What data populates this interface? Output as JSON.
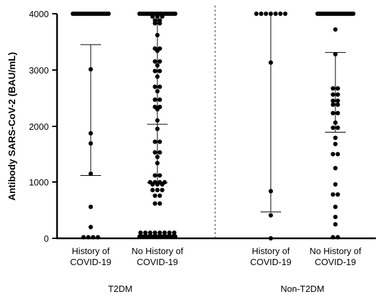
{
  "chart_data": {
    "type": "scatter",
    "ylabel": "Antibody SARS-CoV-2 (BAU/mL)",
    "ylim": [
      0,
      4000
    ],
    "yticks": [
      0,
      1000,
      2000,
      3000,
      4000
    ],
    "grid": false,
    "categories": [
      {
        "label_line1": "History of",
        "label_line2": "COVID-19",
        "group": "T2DM"
      },
      {
        "label_line1": "No History of",
        "label_line2": "COVID-19",
        "group": "T2DM"
      },
      {
        "label_line1": "History of",
        "label_line2": "COVID-19",
        "group": "Non-T2DM"
      },
      {
        "label_line1": "No History of",
        "label_line2": "COVID-19",
        "group": "Non-T2DM"
      }
    ],
    "groups": [
      {
        "label": "T2DM",
        "categories": [
          0,
          1
        ]
      },
      {
        "label": "Non-T2DM",
        "categories": [
          2,
          3
        ]
      }
    ],
    "series": [
      {
        "summary": {
          "center": 4000,
          "upper": 3450,
          "lower": 1120
        },
        "points": [
          {
            "y": 4000,
            "n": 18
          },
          {
            "y": 3010,
            "n": 1
          },
          {
            "y": 1870,
            "n": 1
          },
          {
            "y": 1690,
            "n": 1
          },
          {
            "y": 1150,
            "n": 1
          },
          {
            "y": 560,
            "n": 1
          },
          {
            "y": 200,
            "n": 1
          },
          {
            "y": 20,
            "n": 4
          }
        ]
      },
      {
        "summary": {
          "center": 4000,
          "upper": 4000,
          "lower": 990,
          "mid": 2030
        },
        "points": [
          {
            "y": 4000,
            "n": 18
          },
          {
            "y": 3950,
            "n": 3
          },
          {
            "y": 3880,
            "n": 2
          },
          {
            "y": 3830,
            "n": 2
          },
          {
            "y": 3620,
            "n": 1
          },
          {
            "y": 3380,
            "n": 2
          },
          {
            "y": 3340,
            "n": 1
          },
          {
            "y": 3150,
            "n": 2
          },
          {
            "y": 3080,
            "n": 1
          },
          {
            "y": 2980,
            "n": 2
          },
          {
            "y": 2880,
            "n": 1
          },
          {
            "y": 2700,
            "n": 2
          },
          {
            "y": 2620,
            "n": 1
          },
          {
            "y": 2470,
            "n": 2
          },
          {
            "y": 2340,
            "n": 2
          },
          {
            "y": 2300,
            "n": 1
          },
          {
            "y": 2100,
            "n": 1
          },
          {
            "y": 1950,
            "n": 1
          },
          {
            "y": 1720,
            "n": 2
          },
          {
            "y": 1530,
            "n": 2
          },
          {
            "y": 1450,
            "n": 1
          },
          {
            "y": 1340,
            "n": 1
          },
          {
            "y": 1120,
            "n": 2
          },
          {
            "y": 1000,
            "n": 4
          },
          {
            "y": 960,
            "n": 3
          },
          {
            "y": 860,
            "n": 3
          },
          {
            "y": 760,
            "n": 2
          },
          {
            "y": 620,
            "n": 2
          },
          {
            "y": 100,
            "n": 8
          },
          {
            "y": 30,
            "n": 16
          }
        ]
      },
      {
        "summary": {
          "center": 4000,
          "upper": 4000,
          "lower": 470
        },
        "points": [
          {
            "y": 4000,
            "n": 7
          },
          {
            "y": 3130,
            "n": 1
          },
          {
            "y": 840,
            "n": 1
          },
          {
            "y": 410,
            "n": 1
          },
          {
            "y": 0,
            "n": 1
          }
        ]
      },
      {
        "summary": {
          "center": 4000,
          "upper": 3310,
          "lower": 1890
        },
        "points": [
          {
            "y": 4000,
            "n": 20
          },
          {
            "y": 3720,
            "n": 1
          },
          {
            "y": 3280,
            "n": 1
          },
          {
            "y": 2670,
            "n": 2
          },
          {
            "y": 2560,
            "n": 2
          },
          {
            "y": 2450,
            "n": 2
          },
          {
            "y": 2380,
            "n": 2
          },
          {
            "y": 2230,
            "n": 2
          },
          {
            "y": 2060,
            "n": 1
          },
          {
            "y": 1970,
            "n": 2
          },
          {
            "y": 1790,
            "n": 1
          },
          {
            "y": 1680,
            "n": 1
          },
          {
            "y": 1500,
            "n": 2
          },
          {
            "y": 1250,
            "n": 1
          },
          {
            "y": 960,
            "n": 1
          },
          {
            "y": 780,
            "n": 2
          },
          {
            "y": 560,
            "n": 1
          },
          {
            "y": 380,
            "n": 1
          },
          {
            "y": 250,
            "n": 1
          },
          {
            "y": 20,
            "n": 2
          }
        ]
      }
    ]
  }
}
